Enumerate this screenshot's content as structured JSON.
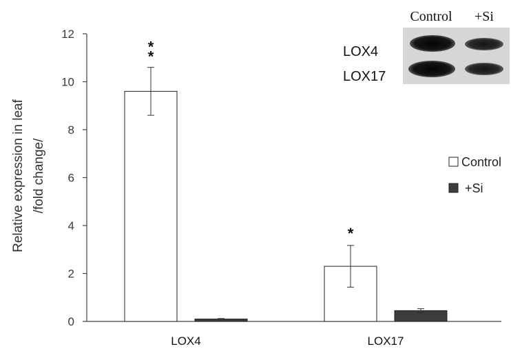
{
  "chart_data": {
    "type": "bar",
    "categories": [
      "LOX4",
      "LOX17"
    ],
    "series": [
      {
        "name": "Control",
        "values": [
          9.6,
          2.3
        ],
        "errors": [
          1.0,
          0.87
        ],
        "color": "#ffffff"
      },
      {
        "name": "+Si",
        "values": [
          0.1,
          0.45
        ],
        "errors": [
          0.02,
          0.08
        ],
        "color": "#3c3c3c"
      }
    ],
    "significance": [
      "**",
      "*"
    ],
    "ylabel_lines": [
      "Relative expression in leaf",
      "/fold change/"
    ],
    "yticks": [
      0,
      2,
      4,
      6,
      8,
      10,
      12
    ],
    "ylim": [
      0,
      12
    ],
    "legend_position": "right",
    "grid": false
  },
  "blot": {
    "columns": [
      "Control",
      "+Si"
    ],
    "rows": [
      "LOX4",
      "LOX17"
    ]
  }
}
